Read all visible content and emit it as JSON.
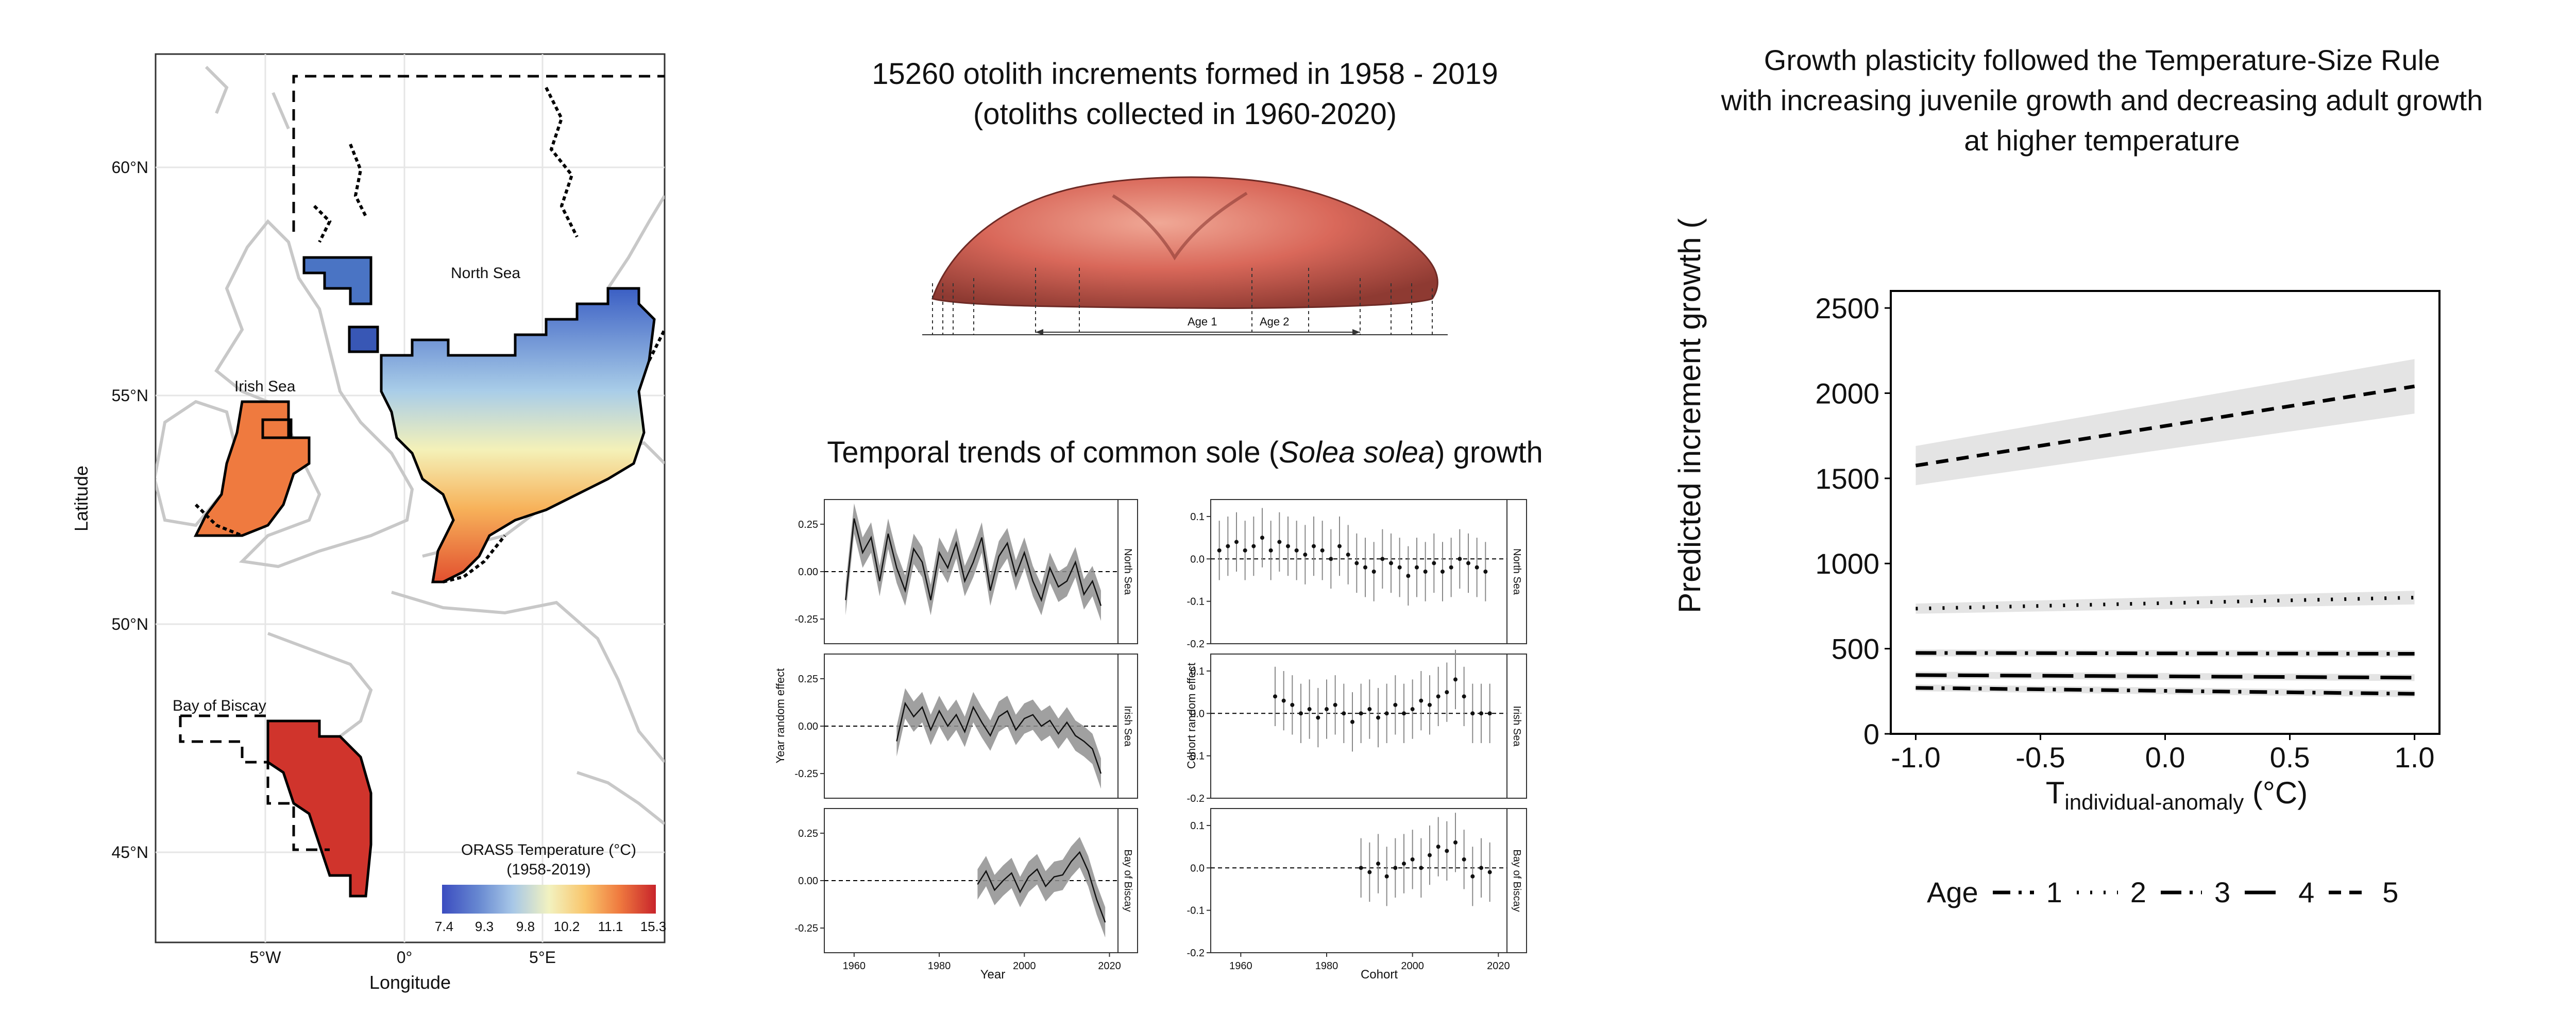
{
  "map": {
    "ylabel": "Latitude",
    "xlabel": "Longitude",
    "lat_ticks": [
      "60°N",
      "55°N",
      "50°N",
      "45°N"
    ],
    "lon_ticks": [
      "5°W",
      "0°",
      "5°E"
    ],
    "region_labels": {
      "north_sea": "North Sea",
      "irish_sea": "Irish Sea",
      "biscay": "Bay of Biscay"
    },
    "colorbar_title_1": "ORAS5 Temperature (°C)",
    "colorbar_title_2": "(1958-2019)",
    "colorbar_ticks": [
      "7.4",
      "9.3",
      "9.8",
      "10.2",
      "11.1",
      "15.3"
    ],
    "colorbar_colors": [
      "#3b4cc0",
      "#6788d1",
      "#a7c7e7",
      "#f2f2c0",
      "#f9c56b",
      "#ef7a3f",
      "#c8242b"
    ]
  },
  "otolith": {
    "title_1": "15260 otolith increments formed in 1958 - 2019",
    "title_2": "(otoliths collected in 1960-2020)",
    "label_age1": "Age 1",
    "label_age2": "Age 2"
  },
  "trends": {
    "title_pre": "Temporal trends of common sole (",
    "title_italic": "Solea solea",
    "title_post": ") growth",
    "year_ylabel": "Year random effect",
    "cohort_ylabel": "Cohort random effect",
    "year_xlabel": "Year",
    "cohort_xlabel": "Cohort",
    "regions": [
      "North Sea",
      "Irish Sea",
      "Bay of Biscay"
    ],
    "year_yticks": [
      "0.25",
      "0.00",
      "-0.25"
    ],
    "cohort_yticks": [
      "0.1",
      "0.0",
      "-0.1",
      "-0.2"
    ],
    "xticks": [
      "1960",
      "1980",
      "2000",
      "2020"
    ]
  },
  "growth": {
    "title_1": "Growth plasticity followed the Temperature-Size Rule",
    "title_2": "with increasing juvenile growth and decreasing adult growth",
    "title_3": "at higher temperature",
    "legend_title": "Age",
    "legend_items": [
      "1",
      "2",
      "3",
      "4",
      "5"
    ]
  },
  "chart_data": [
    {
      "type": "line",
      "title": "Growth plasticity followed the Temperature-Size Rule with increasing juvenile growth and decreasing adult growth at higher temperature",
      "xlabel": "T individual-anomaly (°C)",
      "ylabel": "Predicted increment growth (μm)",
      "xlim": [
        -1.1,
        1.1
      ],
      "ylim": [
        0,
        2600
      ],
      "xticks": [
        -1.0,
        -0.5,
        0.0,
        0.5,
        1.0
      ],
      "yticks": [
        0,
        500,
        1000,
        1500,
        2000,
        2500
      ],
      "xtick_labels": [
        "-1.0",
        "-0.5",
        "0.0",
        "0.5",
        "1.0"
      ],
      "ytick_labels": [
        "0",
        "500",
        "1000",
        "1500",
        "2000",
        "2500"
      ],
      "x": [
        -1.0,
        1.0
      ],
      "legend_title": "Age",
      "legend_position": "bottom",
      "series": [
        {
          "name": "1",
          "values": [
            270,
            235
          ],
          "ci_lower": [
            250,
            215
          ],
          "ci_upper": [
            290,
            255
          ],
          "dash": "34,16,6,16"
        },
        {
          "name": "2",
          "values": [
            735,
            800
          ],
          "ci_lower": [
            705,
            760
          ],
          "ci_upper": [
            765,
            840
          ],
          "dash": "4,22"
        },
        {
          "name": "3",
          "values": [
            475,
            470
          ],
          "ci_lower": [
            455,
            450
          ],
          "ci_upper": [
            495,
            490
          ],
          "dash": "40,16,6,16"
        },
        {
          "name": "4",
          "values": [
            345,
            330
          ],
          "ci_lower": [
            325,
            310
          ],
          "ci_upper": [
            365,
            350
          ],
          "dash": "60,22"
        },
        {
          "name": "5",
          "values": [
            1575,
            2040
          ],
          "ci_lower": [
            1460,
            1880
          ],
          "ci_upper": [
            1690,
            2200
          ],
          "dash": "24,16"
        }
      ]
    },
    {
      "type": "line",
      "title": "Year random effect — North Sea",
      "xlabel": "Year",
      "ylabel": "Year random effect",
      "xlim": [
        1953,
        2022
      ],
      "ylim": [
        -0.38,
        0.38
      ],
      "x": [
        1958,
        1960,
        1962,
        1964,
        1966,
        1968,
        1970,
        1972,
        1974,
        1976,
        1978,
        1980,
        1982,
        1984,
        1986,
        1988,
        1990,
        1992,
        1994,
        1996,
        1998,
        2000,
        2002,
        2004,
        2006,
        2008,
        2010,
        2012,
        2014,
        2016,
        2018
      ],
      "values": [
        -0.15,
        0.28,
        0.1,
        0.18,
        -0.05,
        0.2,
        0.02,
        -0.1,
        0.12,
        0.05,
        -0.15,
        0.1,
        0.02,
        0.15,
        -0.05,
        0.05,
        0.18,
        -0.1,
        0.08,
        0.15,
        -0.02,
        0.1,
        -0.05,
        -0.15,
        0.02,
        -0.08,
        -0.05,
        0.05,
        -0.12,
        -0.05,
        -0.18
      ]
    },
    {
      "type": "line",
      "title": "Year random effect — Irish Sea",
      "xlabel": "Year",
      "ylabel": "Year random effect",
      "xlim": [
        1953,
        2022
      ],
      "ylim": [
        -0.38,
        0.38
      ],
      "x": [
        1970,
        1972,
        1974,
        1976,
        1978,
        1980,
        1982,
        1984,
        1986,
        1988,
        1990,
        1992,
        1994,
        1996,
        1998,
        2000,
        2002,
        2004,
        2006,
        2008,
        2010,
        2012,
        2014,
        2016,
        2018
      ],
      "values": [
        -0.08,
        0.12,
        0.05,
        0.1,
        -0.02,
        0.08,
        0.0,
        0.06,
        -0.03,
        0.1,
        0.02,
        -0.05,
        0.05,
        0.08,
        -0.02,
        0.04,
        0.06,
        0.0,
        0.03,
        -0.04,
        0.02,
        -0.05,
        -0.08,
        -0.12,
        -0.25
      ]
    },
    {
      "type": "line",
      "title": "Year random effect — Bay of Biscay",
      "xlabel": "Year",
      "ylabel": "Year random effect",
      "xlim": [
        1953,
        2022
      ],
      "ylim": [
        -0.38,
        0.38
      ],
      "x": [
        1989,
        1991,
        1993,
        1995,
        1997,
        1999,
        2001,
        2003,
        2005,
        2007,
        2009,
        2011,
        2013,
        2015,
        2017,
        2019
      ],
      "values": [
        -0.02,
        0.05,
        -0.05,
        0.0,
        0.04,
        -0.06,
        0.02,
        0.06,
        -0.03,
        0.02,
        0.03,
        0.1,
        0.15,
        0.05,
        -0.1,
        -0.22
      ]
    },
    {
      "type": "scatter",
      "title": "Cohort random effect — North Sea",
      "xlabel": "Cohort",
      "ylabel": "Cohort random effect",
      "xlim": [
        1953,
        2022
      ],
      "ylim": [
        -0.2,
        0.14
      ],
      "x": [
        1955,
        1957,
        1959,
        1961,
        1963,
        1965,
        1967,
        1969,
        1971,
        1973,
        1975,
        1977,
        1979,
        1981,
        1983,
        1985,
        1987,
        1989,
        1991,
        1993,
        1995,
        1997,
        1999,
        2001,
        2003,
        2005,
        2007,
        2009,
        2011,
        2013,
        2015,
        2017
      ],
      "values": [
        0.02,
        0.03,
        0.04,
        0.02,
        0.03,
        0.05,
        0.02,
        0.04,
        0.03,
        0.02,
        0.01,
        0.03,
        0.02,
        0.0,
        0.03,
        0.01,
        -0.01,
        -0.02,
        -0.03,
        0.0,
        -0.01,
        -0.02,
        -0.04,
        -0.02,
        -0.03,
        -0.01,
        -0.03,
        -0.02,
        0.0,
        -0.01,
        -0.02,
        -0.03
      ]
    },
    {
      "type": "scatter",
      "title": "Cohort random effect — Irish Sea",
      "xlabel": "Cohort",
      "ylabel": "Cohort random effect",
      "xlim": [
        1953,
        2022
      ],
      "ylim": [
        -0.2,
        0.14
      ],
      "x": [
        1968,
        1970,
        1972,
        1974,
        1976,
        1978,
        1980,
        1982,
        1984,
        1986,
        1988,
        1990,
        1992,
        1994,
        1996,
        1998,
        2000,
        2002,
        2004,
        2006,
        2008,
        2010,
        2012,
        2014,
        2016,
        2018
      ],
      "values": [
        0.04,
        0.03,
        0.02,
        0.0,
        0.01,
        -0.01,
        0.01,
        0.02,
        0.0,
        -0.02,
        0.0,
        0.01,
        -0.01,
        0.0,
        0.02,
        0.0,
        0.01,
        0.03,
        0.02,
        0.04,
        0.05,
        0.08,
        0.04,
        0.0,
        0.0,
        0.0
      ]
    },
    {
      "type": "scatter",
      "title": "Cohort random effect — Bay of Biscay",
      "xlabel": "Cohort",
      "ylabel": "Cohort random effect",
      "xlim": [
        1953,
        2022
      ],
      "ylim": [
        -0.2,
        0.14
      ],
      "x": [
        1988,
        1990,
        1992,
        1994,
        1996,
        1998,
        2000,
        2002,
        2004,
        2006,
        2008,
        2010,
        2012,
        2014,
        2016,
        2018
      ],
      "values": [
        0.0,
        -0.01,
        0.01,
        -0.02,
        0.0,
        0.01,
        0.02,
        0.0,
        0.03,
        0.05,
        0.04,
        0.06,
        0.02,
        -0.02,
        0.0,
        -0.01
      ]
    }
  ]
}
